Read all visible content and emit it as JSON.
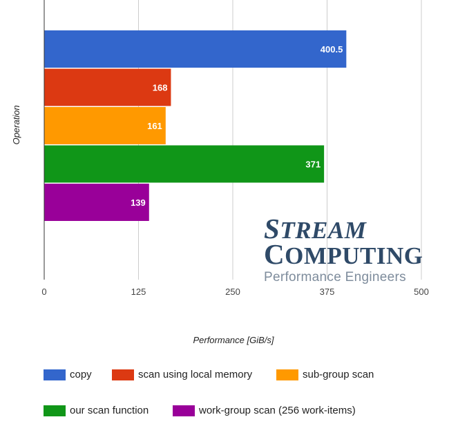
{
  "chart_data": {
    "type": "bar",
    "orientation": "horizontal",
    "xlabel": "Performance [GiB/s]",
    "ylabel": "Operation",
    "xlim": [
      0,
      500
    ],
    "xticks": [
      "0",
      "125",
      "250",
      "375",
      "500"
    ],
    "grid": true,
    "legend_position": "bottom",
    "series": [
      {
        "name": "copy",
        "value": 400.5,
        "label": "400.5",
        "color": "#3366cc"
      },
      {
        "name": "scan using local memory",
        "value": 168,
        "label": "168",
        "color": "#dc3912"
      },
      {
        "name": "sub-group scan",
        "value": 161,
        "label": "161",
        "color": "#ff9900"
      },
      {
        "name": "our scan function",
        "value": 371,
        "label": "371",
        "color": "#109618"
      },
      {
        "name": "work-group scan (256 work-items)",
        "value": 139,
        "label": "139",
        "color": "#990099"
      }
    ]
  },
  "logo": {
    "line1": "STREAM",
    "line2": "COMPUTING",
    "tagline": "Performance Engineers"
  }
}
